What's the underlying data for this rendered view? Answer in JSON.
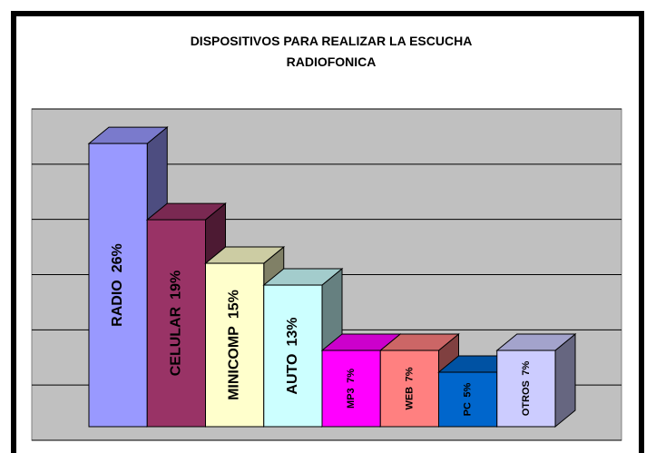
{
  "chart_data": {
    "type": "bar3d",
    "title": [
      "DISPOSITIVOS PARA REALIZAR LA ESCUCHA",
      "RADIOFONICA"
    ],
    "categories": [
      "RADIO",
      "CELULAR",
      "MINICOMP",
      "AUTO",
      "MP3",
      "WEB",
      "PC",
      "OTROS"
    ],
    "values": [
      26,
      19,
      15,
      13,
      7,
      7,
      5,
      7
    ],
    "value_labels": [
      "26%",
      "19%",
      "15%",
      "13%",
      "7%",
      "7%",
      "5%",
      "7%"
    ],
    "colors": [
      "#9999ff",
      "#993366",
      "#ffffcc",
      "#ccffff",
      "#ff00ff",
      "#ff8080",
      "#0066cc",
      "#ccccff"
    ],
    "ylim": [
      0,
      30
    ],
    "yticks": [
      0,
      5,
      10,
      15,
      20,
      25,
      30
    ],
    "grid": true
  }
}
